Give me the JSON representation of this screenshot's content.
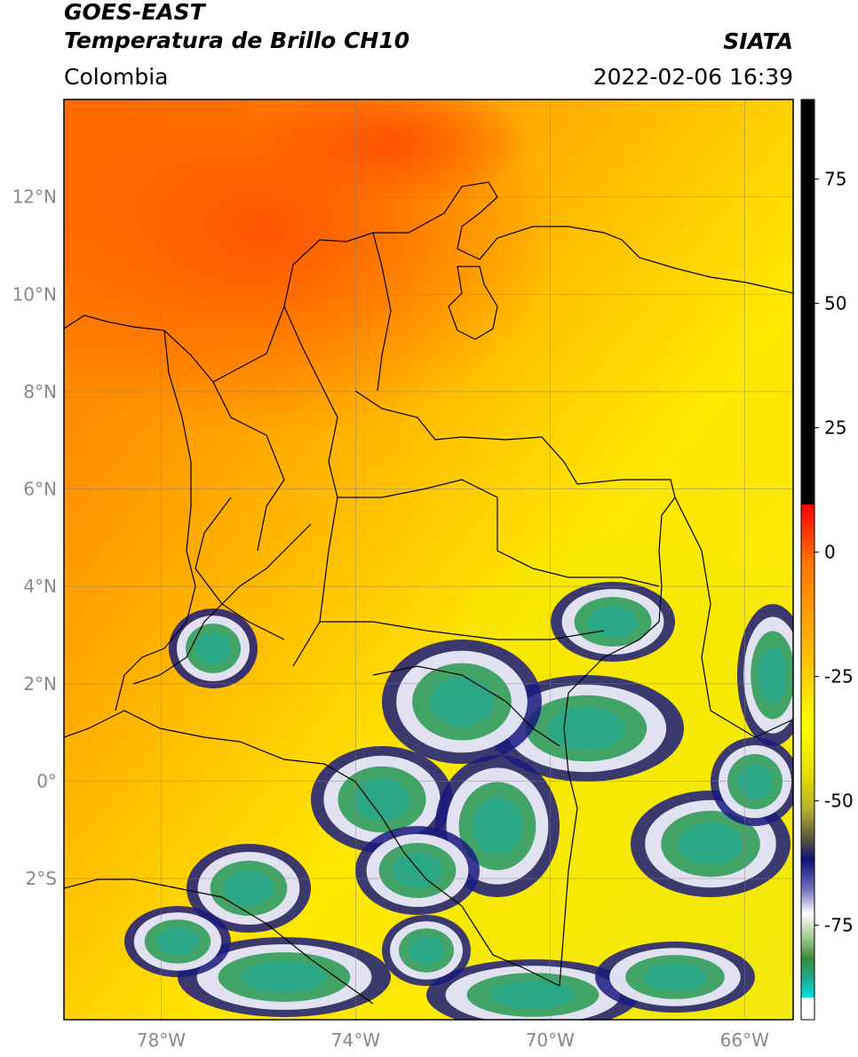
{
  "header": {
    "satellite": "GOES-EAST",
    "product": "Temperatura de Brillo CH10",
    "region": "Colombia",
    "organization": "SIATA",
    "datetime": "2022-02-06 16:39"
  },
  "map": {
    "lon_range": [
      -80.0,
      -65.0
    ],
    "lat_range": [
      -4.9,
      14.0
    ],
    "lat_ticks": [
      {
        "value": 12,
        "label": "12°N"
      },
      {
        "value": 10,
        "label": "10°N"
      },
      {
        "value": 8,
        "label": "8°N"
      },
      {
        "value": 6,
        "label": "6°N"
      },
      {
        "value": 4,
        "label": "4°N"
      },
      {
        "value": 2,
        "label": "2°N"
      },
      {
        "value": 0,
        "label": "0°"
      },
      {
        "value": -2,
        "label": "2°S"
      }
    ],
    "lon_ticks": [
      {
        "value": -78,
        "label": "78°W"
      },
      {
        "value": -74,
        "label": "74°W"
      },
      {
        "value": -70,
        "label": "70°W"
      },
      {
        "value": -66,
        "label": "66°W"
      }
    ],
    "gridlines": true,
    "colors": {
      "warm": "#ff6a00",
      "mid": "#ffa000",
      "yellow": "#ffee00",
      "olive": "#c9c230",
      "navy": "#1a1a80",
      "white": "#f4f4ff",
      "green": "#3aa060",
      "teal": "#1fbfa0",
      "border": "#000000"
    }
  },
  "colorbar": {
    "ticks": [
      {
        "value": 75,
        "label": "75"
      },
      {
        "value": 50,
        "label": "50"
      },
      {
        "value": 25,
        "label": "25"
      },
      {
        "value": 0,
        "label": "0"
      },
      {
        "value": -25,
        "label": "-25"
      },
      {
        "value": -50,
        "label": "-50"
      },
      {
        "value": -75,
        "label": "-75"
      }
    ],
    "range": [
      -94,
      91
    ]
  }
}
